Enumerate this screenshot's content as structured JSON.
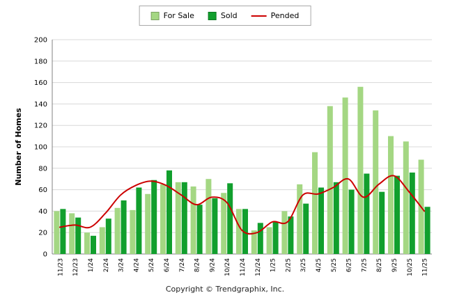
{
  "page": {
    "background": "#ffffff"
  },
  "legend": {
    "items": [
      {
        "label": "For Sale",
        "swatch": "bar",
        "color": "#a4d783"
      },
      {
        "label": "Sold",
        "swatch": "bar",
        "color": "#119f2d"
      },
      {
        "label": "Pended",
        "swatch": "line",
        "color": "#cc0000"
      }
    ]
  },
  "footer": {
    "copyright": "Copyright © Trendgraphix, Inc."
  },
  "colors": {
    "for_sale": "#a4d783",
    "sold": "#119f2d",
    "pended": "#cc0000",
    "gridline": "#d8d8d8",
    "axis": "#808080",
    "text": "#000000"
  },
  "chart_data": {
    "type": "bar",
    "title": "",
    "xlabel": "",
    "ylabel": "Number of Homes",
    "ylim": [
      0,
      200
    ],
    "ytick_step": 20,
    "grid": true,
    "legend_position": "top",
    "categories": [
      "11/23",
      "12/23",
      "1/24",
      "2/24",
      "3/24",
      "4/24",
      "5/24",
      "6/24",
      "7/24",
      "8/24",
      "9/24",
      "10/24",
      "11/24",
      "12/24",
      "1/25",
      "2/25",
      "3/25",
      "4/25",
      "5/25",
      "6/25",
      "7/25",
      "8/25",
      "9/25",
      "10/25",
      "11/25"
    ],
    "series": [
      {
        "name": "For Sale",
        "type": "bar",
        "color": "#a4d783",
        "values": [
          40,
          38,
          20,
          25,
          43,
          41,
          56,
          65,
          67,
          63,
          70,
          57,
          42,
          22,
          25,
          40,
          65,
          95,
          138,
          146,
          156,
          134,
          110,
          105,
          88
        ]
      },
      {
        "name": "Sold",
        "type": "bar",
        "color": "#119f2d",
        "values": [
          42,
          34,
          17,
          33,
          50,
          62,
          69,
          78,
          67,
          46,
          52,
          66,
          42,
          29,
          30,
          35,
          47,
          62,
          67,
          60,
          75,
          58,
          73,
          76,
          44
        ]
      },
      {
        "name": "Pended",
        "type": "line",
        "color": "#cc0000",
        "values": [
          25,
          27,
          25,
          38,
          55,
          64,
          68,
          64,
          55,
          46,
          53,
          48,
          22,
          20,
          30,
          30,
          55,
          56,
          62,
          70,
          53,
          65,
          73,
          58,
          40
        ]
      }
    ]
  }
}
